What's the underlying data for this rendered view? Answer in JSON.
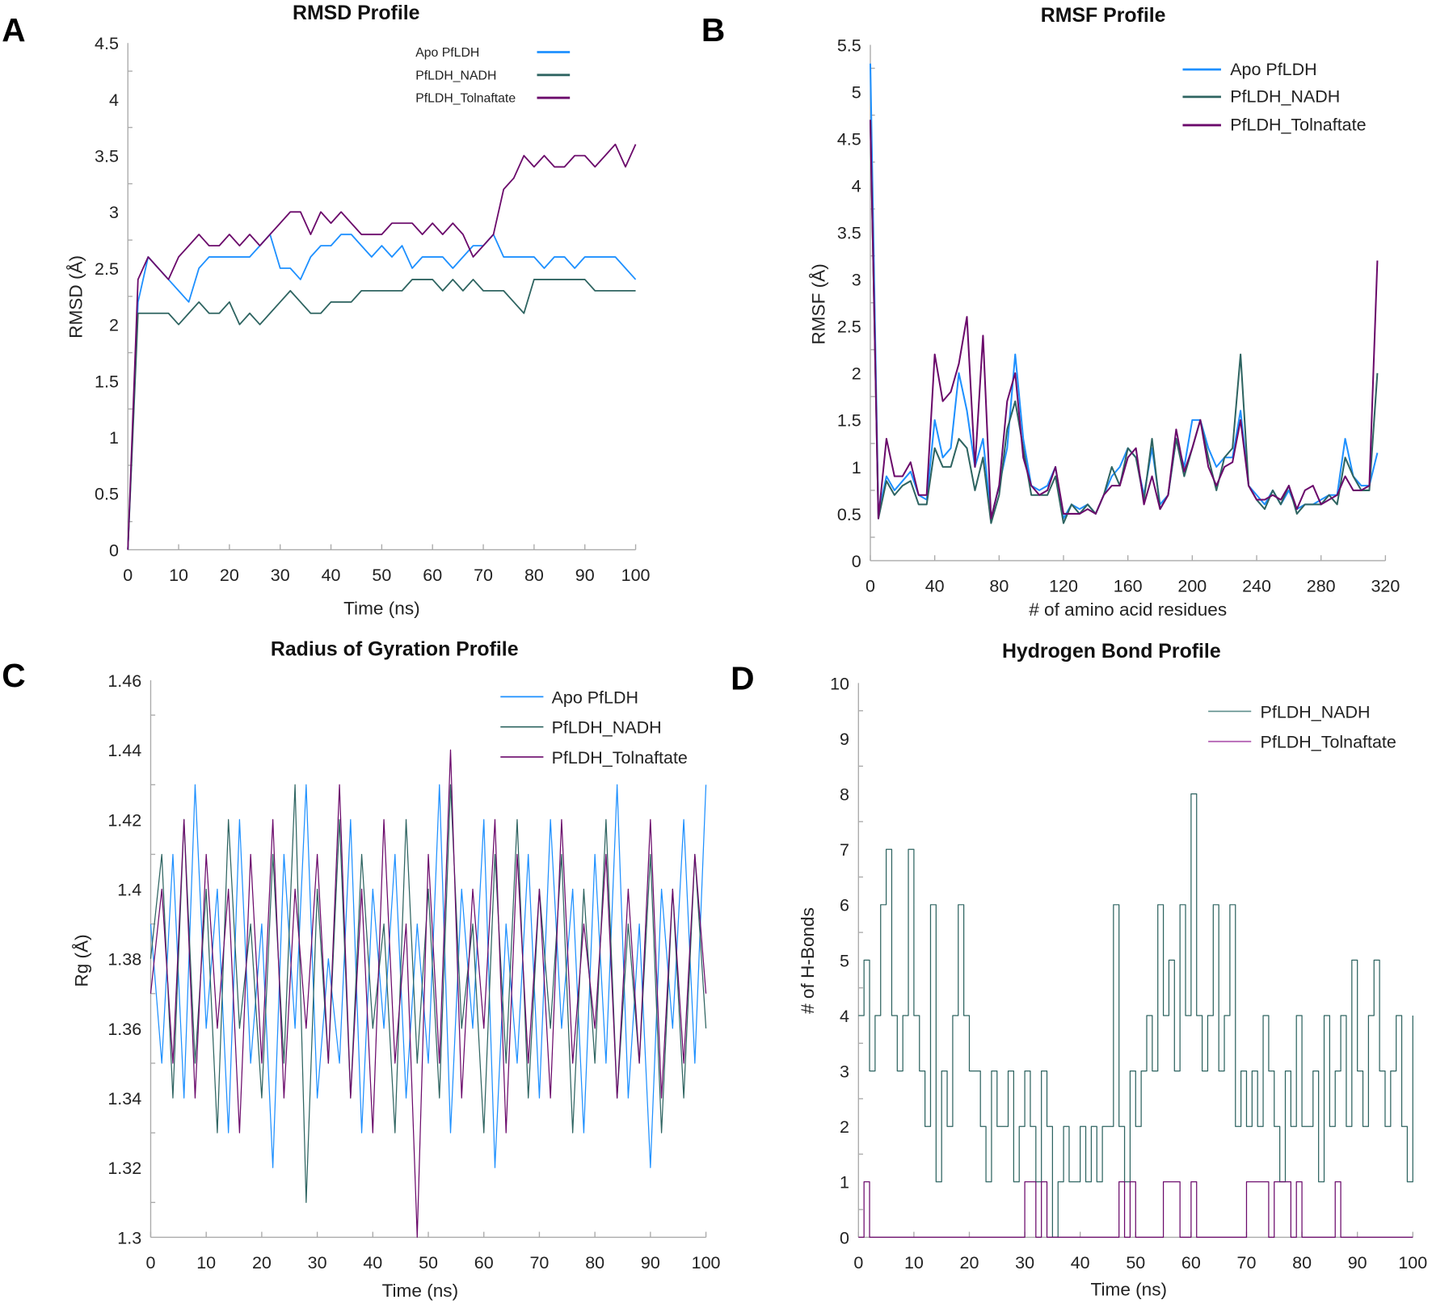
{
  "panel_labels": [
    "A",
    "B",
    "C",
    "D"
  ],
  "colors": {
    "apo": "#1e90ff",
    "nadh": "#2e6461",
    "tolnaftate": "#6b0a6b"
  },
  "chart_data": [
    {
      "type": "line",
      "title": "RMSD Profile",
      "xlabel": "Time (ns)",
      "ylabel": "RMSD (Å)",
      "xlim": [
        0,
        100
      ],
      "ylim": [
        0,
        4.5
      ],
      "xticks": [
        0,
        10,
        20,
        30,
        40,
        50,
        60,
        70,
        80,
        90,
        100
      ],
      "yticks": [
        0,
        0.5,
        1,
        1.5,
        2,
        2.5,
        3,
        3.5,
        4,
        4.5
      ],
      "legend_position": "top-right",
      "x_start": 0,
      "x_step": 2,
      "series": [
        {
          "name": "Apo PfLDH",
          "key": "apo",
          "values": [
            0,
            2.2,
            2.6,
            2.5,
            2.4,
            2.3,
            2.2,
            2.5,
            2.6,
            2.6,
            2.6,
            2.6,
            2.6,
            2.7,
            2.8,
            2.5,
            2.5,
            2.4,
            2.6,
            2.7,
            2.7,
            2.8,
            2.8,
            2.7,
            2.6,
            2.7,
            2.6,
            2.7,
            2.5,
            2.6,
            2.6,
            2.6,
            2.5,
            2.6,
            2.7,
            2.7,
            2.8,
            2.6,
            2.6,
            2.6,
            2.6,
            2.5,
            2.6,
            2.6,
            2.5,
            2.6,
            2.6,
            2.6,
            2.6,
            2.5,
            2.4
          ]
        },
        {
          "name": "PfLDH_NADH",
          "key": "nadh",
          "values": [
            0,
            2.1,
            2.1,
            2.1,
            2.1,
            2.0,
            2.1,
            2.2,
            2.1,
            2.1,
            2.2,
            2.0,
            2.1,
            2.0,
            2.1,
            2.2,
            2.3,
            2.2,
            2.1,
            2.1,
            2.2,
            2.2,
            2.2,
            2.3,
            2.3,
            2.3,
            2.3,
            2.3,
            2.4,
            2.4,
            2.4,
            2.3,
            2.4,
            2.3,
            2.4,
            2.3,
            2.3,
            2.3,
            2.2,
            2.1,
            2.4,
            2.4,
            2.4,
            2.4,
            2.4,
            2.4,
            2.3,
            2.3,
            2.3,
            2.3,
            2.3
          ]
        },
        {
          "name": "PfLDH_Tolnaftate",
          "key": "tolnaftate",
          "values": [
            0,
            2.4,
            2.6,
            2.5,
            2.4,
            2.6,
            2.7,
            2.8,
            2.7,
            2.7,
            2.8,
            2.7,
            2.8,
            2.7,
            2.8,
            2.9,
            3.0,
            3.0,
            2.8,
            3.0,
            2.9,
            3.0,
            2.9,
            2.8,
            2.8,
            2.8,
            2.9,
            2.9,
            2.9,
            2.8,
            2.9,
            2.8,
            2.9,
            2.8,
            2.6,
            2.7,
            2.8,
            3.2,
            3.3,
            3.5,
            3.4,
            3.5,
            3.4,
            3.4,
            3.5,
            3.5,
            3.4,
            3.5,
            3.6,
            3.4,
            3.6
          ]
        }
      ]
    },
    {
      "type": "line",
      "title": "RMSF Profile",
      "xlabel": "# of amino acid residues",
      "ylabel": "RMSF (Å)",
      "xlim": [
        0,
        320
      ],
      "ylim": [
        0,
        5.5
      ],
      "xticks": [
        0,
        40,
        80,
        120,
        160,
        200,
        240,
        280,
        320
      ],
      "yticks": [
        0,
        0.5,
        1,
        1.5,
        2,
        2.5,
        3,
        3.5,
        4,
        4.5,
        5,
        5.5
      ],
      "legend_position": "top-right",
      "x_start": 0,
      "x_step": 5,
      "series": [
        {
          "name": "Apo PfLDH",
          "key": "apo",
          "values": [
            5.3,
            0.5,
            0.9,
            0.75,
            0.85,
            0.95,
            0.7,
            0.65,
            1.5,
            1.1,
            1.2,
            2.0,
            1.6,
            1.0,
            1.3,
            0.45,
            0.8,
            1.2,
            2.2,
            1.3,
            0.8,
            0.75,
            0.8,
            1.0,
            0.45,
            0.6,
            0.55,
            0.6,
            0.5,
            0.7,
            0.9,
            1.0,
            1.2,
            1.1,
            0.7,
            1.2,
            0.6,
            0.7,
            1.3,
            1.0,
            1.5,
            1.5,
            1.2,
            1.0,
            1.1,
            1.1,
            1.6,
            0.8,
            0.7,
            0.6,
            0.75,
            0.6,
            0.75,
            0.55,
            0.6,
            0.6,
            0.65,
            0.7,
            0.7,
            1.3,
            0.9,
            0.8,
            0.8,
            1.15
          ]
        },
        {
          "name": "PfLDH_NADH",
          "key": "nadh",
          "values": [
            4.7,
            0.45,
            0.85,
            0.7,
            0.8,
            0.85,
            0.6,
            0.6,
            1.2,
            1.0,
            1.0,
            1.3,
            1.2,
            0.75,
            1.1,
            0.4,
            0.7,
            1.4,
            1.7,
            1.2,
            0.7,
            0.7,
            0.7,
            0.9,
            0.4,
            0.6,
            0.5,
            0.6,
            0.5,
            0.7,
            1.0,
            0.8,
            1.2,
            1.1,
            0.65,
            1.3,
            0.55,
            0.7,
            1.3,
            0.9,
            1.2,
            1.5,
            1.1,
            0.75,
            1.1,
            1.2,
            2.2,
            0.8,
            0.65,
            0.55,
            0.75,
            0.6,
            0.8,
            0.5,
            0.6,
            0.6,
            0.6,
            0.7,
            0.6,
            1.1,
            0.9,
            0.75,
            0.75,
            2.0
          ]
        },
        {
          "name": "PfLDH_Tolnaftate",
          "key": "tolnaftate",
          "values": [
            4.7,
            0.45,
            1.3,
            0.9,
            0.9,
            1.05,
            0.7,
            0.7,
            2.2,
            1.7,
            1.8,
            2.1,
            2.6,
            1.0,
            2.4,
            0.45,
            0.8,
            1.7,
            2.0,
            1.1,
            0.8,
            0.7,
            0.75,
            1.0,
            0.5,
            0.5,
            0.5,
            0.55,
            0.5,
            0.7,
            0.8,
            0.8,
            1.1,
            1.2,
            0.6,
            0.9,
            0.55,
            0.7,
            1.4,
            0.95,
            1.2,
            1.5,
            1.0,
            0.8,
            1.0,
            1.05,
            1.5,
            0.8,
            0.65,
            0.65,
            0.7,
            0.65,
            0.8,
            0.55,
            0.75,
            0.8,
            0.6,
            0.65,
            0.7,
            0.9,
            0.75,
            0.75,
            0.8,
            3.2
          ]
        }
      ]
    },
    {
      "type": "line",
      "title": "Radius of Gyration Profile",
      "xlabel": "Time (ns)",
      "ylabel": "Rg (Å)",
      "xlim": [
        0,
        100
      ],
      "ylim": [
        1.3,
        1.46
      ],
      "xticks": [
        0,
        10,
        20,
        30,
        40,
        50,
        60,
        70,
        80,
        90,
        100
      ],
      "yticks": [
        "1.3",
        "1.32",
        "1.34",
        "1.36",
        "1.38",
        "1.4",
        "1.42",
        "1.44",
        "1.46"
      ],
      "legend_position": "top-right",
      "x_start": 0,
      "x_step": 2,
      "series": [
        {
          "name": "Apo PfLDH",
          "key": "apo",
          "values": [
            1.39,
            1.35,
            1.41,
            1.34,
            1.43,
            1.36,
            1.4,
            1.33,
            1.42,
            1.35,
            1.39,
            1.32,
            1.41,
            1.36,
            1.43,
            1.34,
            1.38,
            1.35,
            1.42,
            1.33,
            1.4,
            1.36,
            1.41,
            1.34,
            1.39,
            1.35,
            1.43,
            1.33,
            1.4,
            1.36,
            1.42,
            1.32,
            1.39,
            1.35,
            1.41,
            1.34,
            1.42,
            1.36,
            1.4,
            1.33,
            1.41,
            1.35,
            1.43,
            1.34,
            1.39,
            1.32,
            1.4,
            1.36,
            1.42,
            1.35,
            1.43
          ]
        },
        {
          "name": "PfLDH_NADH",
          "key": "nadh",
          "values": [
            1.38,
            1.41,
            1.34,
            1.42,
            1.35,
            1.4,
            1.33,
            1.42,
            1.36,
            1.39,
            1.34,
            1.41,
            1.35,
            1.43,
            1.31,
            1.4,
            1.35,
            1.42,
            1.34,
            1.41,
            1.36,
            1.39,
            1.33,
            1.42,
            1.35,
            1.4,
            1.34,
            1.43,
            1.36,
            1.39,
            1.33,
            1.41,
            1.35,
            1.42,
            1.34,
            1.4,
            1.36,
            1.41,
            1.33,
            1.4,
            1.35,
            1.42,
            1.34,
            1.39,
            1.35,
            1.41,
            1.33,
            1.4,
            1.34,
            1.41,
            1.36
          ]
        },
        {
          "name": "PfLDH_Tolnaftate",
          "key": "tolnaftate",
          "values": [
            1.37,
            1.4,
            1.35,
            1.42,
            1.34,
            1.41,
            1.36,
            1.4,
            1.33,
            1.41,
            1.35,
            1.42,
            1.34,
            1.4,
            1.36,
            1.41,
            1.35,
            1.43,
            1.34,
            1.4,
            1.33,
            1.42,
            1.35,
            1.39,
            1.3,
            1.41,
            1.35,
            1.44,
            1.34,
            1.4,
            1.36,
            1.42,
            1.33,
            1.41,
            1.35,
            1.4,
            1.34,
            1.42,
            1.35,
            1.39,
            1.36,
            1.41,
            1.34,
            1.4,
            1.35,
            1.42,
            1.34,
            1.4,
            1.35,
            1.41,
            1.37
          ]
        }
      ]
    },
    {
      "type": "line",
      "title": "Hydrogen Bond Profile",
      "xlabel": "Time (ns)",
      "ylabel": "# of H-Bonds",
      "xlim": [
        0,
        100
      ],
      "ylim": [
        0,
        10
      ],
      "xticks": [
        0,
        10,
        20,
        30,
        40,
        50,
        60,
        70,
        80,
        90,
        100
      ],
      "yticks": [
        0,
        1,
        2,
        3,
        4,
        5,
        6,
        7,
        8,
        9,
        10
      ],
      "legend_position": "top-right",
      "x_start": 0,
      "x_step": 1,
      "series": [
        {
          "name": "PfLDH_NADH",
          "key": "nadh",
          "values": [
            4,
            5,
            3,
            4,
            6,
            7,
            4,
            3,
            4,
            7,
            4,
            3,
            2,
            6,
            1,
            3,
            2,
            4,
            6,
            4,
            3,
            3,
            2,
            1,
            3,
            2,
            2,
            3,
            1,
            2,
            3,
            2,
            1,
            3,
            2,
            0,
            1,
            2,
            1,
            1,
            2,
            1,
            2,
            1,
            2,
            2,
            6,
            2,
            1,
            3,
            2,
            3,
            4,
            3,
            6,
            4,
            5,
            3,
            6,
            4,
            8,
            4,
            3,
            4,
            6,
            3,
            4,
            6,
            2,
            3,
            2,
            3,
            2,
            4,
            3,
            2,
            1,
            3,
            2,
            4,
            2,
            2,
            3,
            1,
            4,
            2,
            3,
            4,
            2,
            5,
            3,
            2,
            4,
            5,
            3,
            2,
            3,
            4,
            2,
            1,
            4
          ]
        },
        {
          "name": "PfLDH_Tolnaftate",
          "key": "tolnaftate",
          "values": [
            0,
            1,
            0,
            0,
            0,
            0,
            0,
            0,
            0,
            0,
            0,
            0,
            0,
            0,
            0,
            0,
            0,
            0,
            0,
            0,
            0,
            0,
            0,
            0,
            0,
            0,
            0,
            0,
            0,
            0,
            1,
            1,
            0,
            1,
            0,
            0,
            0,
            0,
            0,
            0,
            0,
            0,
            0,
            0,
            0,
            0,
            0,
            1,
            0,
            1,
            0,
            0,
            0,
            0,
            0,
            1,
            1,
            1,
            0,
            0,
            1,
            0,
            0,
            0,
            0,
            0,
            0,
            0,
            0,
            0,
            1,
            1,
            1,
            1,
            0,
            1,
            1,
            1,
            0,
            1,
            0,
            0,
            0,
            0,
            0,
            0,
            1,
            0,
            0,
            0,
            0,
            0,
            0,
            0,
            0,
            0,
            0,
            0,
            0,
            0,
            0
          ]
        }
      ]
    }
  ]
}
